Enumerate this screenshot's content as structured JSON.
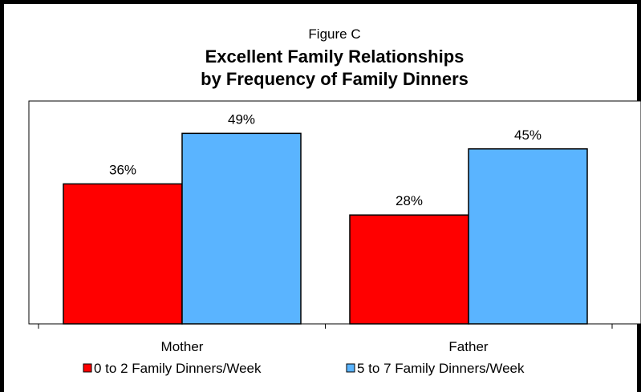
{
  "chart_data": {
    "type": "bar",
    "figure_label": "Figure C",
    "title_line1": "Excellent Family Relationships",
    "title_line2": "by Frequency of Family Dinners",
    "categories": [
      "Mother",
      "Father"
    ],
    "series": [
      {
        "name": "0 to 2 Family Dinners/Week",
        "values": [
          36,
          28
        ],
        "color": "#ff0000"
      },
      {
        "name": "5 to 7 Family Dinners/Week",
        "values": [
          49,
          45
        ],
        "color": "#5ab4ff"
      }
    ],
    "value_suffix": "%",
    "xlabel": "",
    "ylabel": "",
    "ylim": [
      0,
      60
    ],
    "grid": false,
    "legend_position": "bottom"
  }
}
